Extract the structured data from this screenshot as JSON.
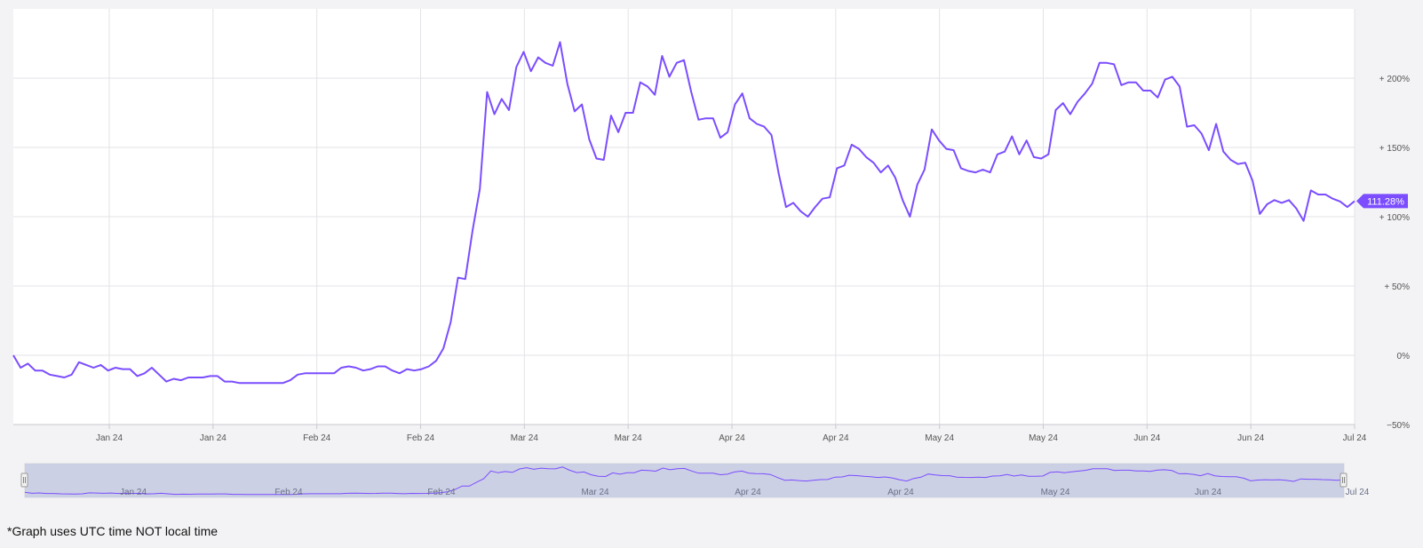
{
  "footnote": "*Graph uses UTC time NOT local time",
  "colors": {
    "line": "#7b4dff",
    "badge": "#7b4dff",
    "navigator_fill": "#c4c9e0",
    "navigator_line": "#7b4dff",
    "grid": "#e3e3e8",
    "axis_text": "#555555"
  },
  "chart_data": {
    "type": "line",
    "series": [
      {
        "values": [
          0,
          -9,
          -6,
          -11,
          -11,
          -14,
          -15,
          -16,
          -14,
          -5,
          -7,
          -9,
          -7,
          -11,
          -9,
          -10,
          -10,
          -15,
          -13,
          -9,
          -14,
          -19,
          -17,
          -18,
          -16,
          -16,
          -16,
          -15,
          -15,
          -19,
          -19,
          -20,
          -20,
          -20,
          -20,
          -20,
          -20,
          -20,
          -18,
          -14,
          -13,
          -13,
          -13,
          -13,
          -13,
          -9,
          -8,
          -9,
          -11,
          -10,
          -8,
          -8,
          -11,
          -13,
          -10,
          -11,
          -10,
          -8,
          -4,
          5,
          24,
          56,
          55,
          90,
          120,
          190,
          174,
          185,
          177,
          208,
          219,
          205,
          215,
          211,
          209,
          226,
          196,
          176,
          181,
          156,
          142,
          141,
          173,
          161,
          175,
          175,
          197,
          194,
          188,
          216,
          201,
          211,
          213,
          190,
          170,
          171,
          171,
          157,
          161,
          181,
          189,
          171,
          167,
          165,
          159,
          131,
          107,
          110,
          104,
          100,
          107,
          113,
          114,
          135,
          137,
          152,
          149,
          143,
          139,
          132,
          137,
          128,
          112,
          100,
          123,
          134,
          163,
          155,
          149,
          148,
          135,
          133,
          132,
          134,
          132,
          145,
          147,
          158,
          145,
          155,
          143,
          142,
          145,
          177,
          182,
          174,
          183,
          189,
          196,
          211,
          211,
          210,
          195,
          197,
          197,
          191,
          191,
          186,
          199,
          201,
          194,
          165,
          166,
          160,
          148,
          167,
          147,
          141,
          138,
          139,
          126,
          102,
          109,
          112,
          110,
          112,
          106,
          97,
          119,
          116,
          116,
          113,
          111,
          107,
          111.28
        ]
      }
    ],
    "x_tick_labels": [
      "Jan 24",
      "Jan 24",
      "Feb 24",
      "Feb 24",
      "Mar 24",
      "Mar 24",
      "Apr 24",
      "Apr 24",
      "May 24",
      "May 24",
      "Jun 24",
      "Jun 24",
      "Jul 24"
    ],
    "y_ticks": [
      {
        "value": 200,
        "label": "+ 200%"
      },
      {
        "value": 150,
        "label": "+ 150%"
      },
      {
        "value": 100,
        "label": "+ 100%"
      },
      {
        "value": 50,
        "label": "+ 50%"
      },
      {
        "value": 0,
        "label": "0%"
      },
      {
        "value": -50,
        "label": "−50%"
      }
    ],
    "ylim": [
      -50,
      250
    ],
    "current_value_label": "111.28%",
    "grid": true,
    "navigator": {
      "x_labels": [
        "Jan 24",
        "Feb 24",
        "Feb 24",
        "Mar 24",
        "Apr 24",
        "Apr 24",
        "May 24",
        "Jun 24",
        "Jul 24"
      ]
    }
  }
}
